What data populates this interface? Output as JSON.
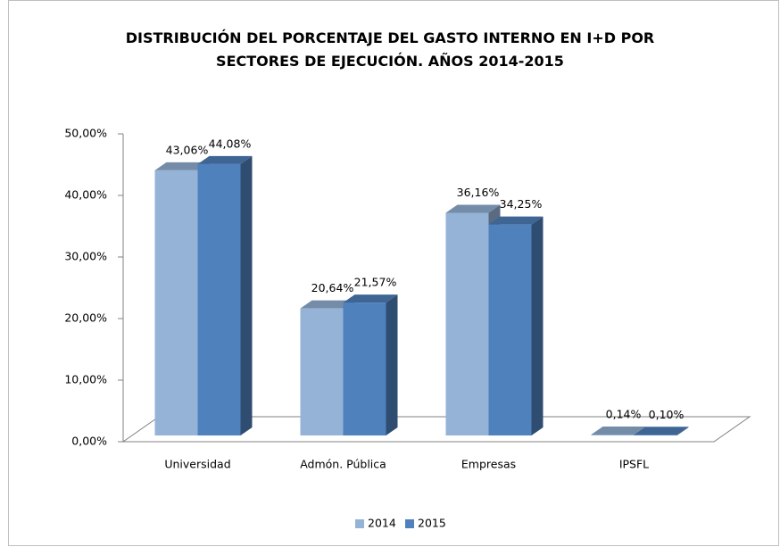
{
  "chart_data": {
    "type": "bar3d",
    "title": "DISTRIBUCIÓN DEL PORCENTAJE DEL GASTO INTERNO EN I+D POR SECTORES DE EJECUCIÓN. AÑOS 2014-2015",
    "categories": [
      "Universidad",
      "Admón. Pública",
      "Empresas",
      "IPSFL"
    ],
    "series": [
      {
        "name": "2014",
        "color": "#95b3d7",
        "values": [
          43.06,
          20.64,
          36.16,
          0.14
        ],
        "value_labels": [
          "43,06%",
          "20,64%",
          "36,16%",
          "0,14%"
        ]
      },
      {
        "name": "2015",
        "color": "#4f81bd",
        "values": [
          44.08,
          21.57,
          34.25,
          0.1
        ],
        "value_labels": [
          "44,08%",
          "21,57%",
          "34,25%",
          "0,10%"
        ]
      }
    ],
    "ylim": [
      0,
      50
    ],
    "yticks": [
      {
        "value": 0,
        "label": "0,00%"
      },
      {
        "value": 10,
        "label": "10,00%"
      },
      {
        "value": 20,
        "label": "20,00%"
      },
      {
        "value": 30,
        "label": "30,00%"
      },
      {
        "value": 40,
        "label": "40,00%"
      },
      {
        "value": 50,
        "label": "50,00%"
      }
    ],
    "legend": "bottom"
  }
}
